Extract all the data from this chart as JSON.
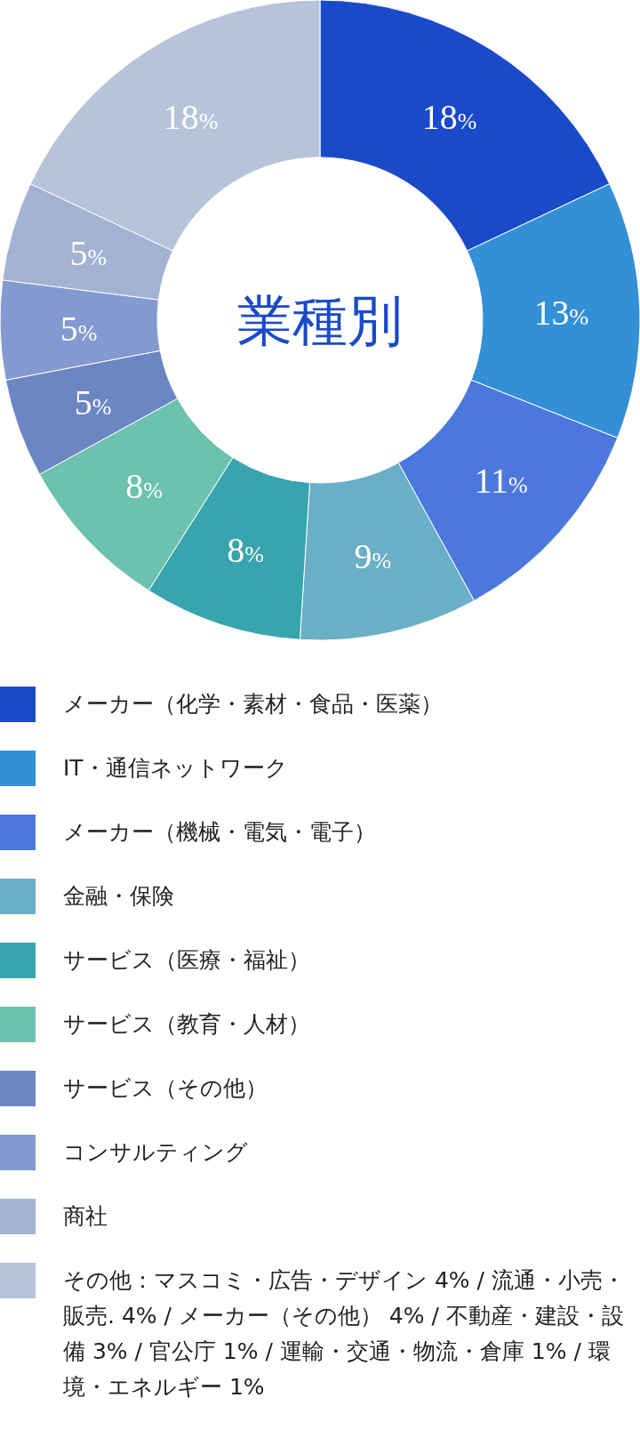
{
  "chart_data": {
    "type": "donut",
    "title": "業種別",
    "categories": [
      "メーカー（化学・素材・食品・医薬）",
      "IT・通信ネットワーク",
      "メーカー（機械・電気・電子）",
      "金融・保険",
      "サービス（医療・福祉）",
      "サービス（教育・人材）",
      "サービス（その他）",
      "コンサルティング",
      "商社",
      "その他：マスコミ・広告・デザイン 4% / 流通・小売・販売. 4% / メーカー（その他） 4% / 不動産・建設・設備 3% / 官公庁 1% / 運輸・交通・物流・倉庫  1% / 環境・エネルギー 1%"
    ],
    "values": [
      18,
      13,
      11,
      9,
      8,
      8,
      5,
      5,
      5,
      18
    ],
    "value_labels": [
      "18%",
      "13%",
      "11%",
      "9%",
      "8%",
      "8%",
      "5%",
      "5%",
      "5%",
      "18%"
    ],
    "colors": [
      "#1a4ac8",
      "#3490d6",
      "#4c78de",
      "#6aafc6",
      "#38a5ae",
      "#6cc2ae",
      "#6c86c4",
      "#8499cf",
      "#a2b2d2",
      "#b6c3da"
    ],
    "legend": "bottom"
  }
}
